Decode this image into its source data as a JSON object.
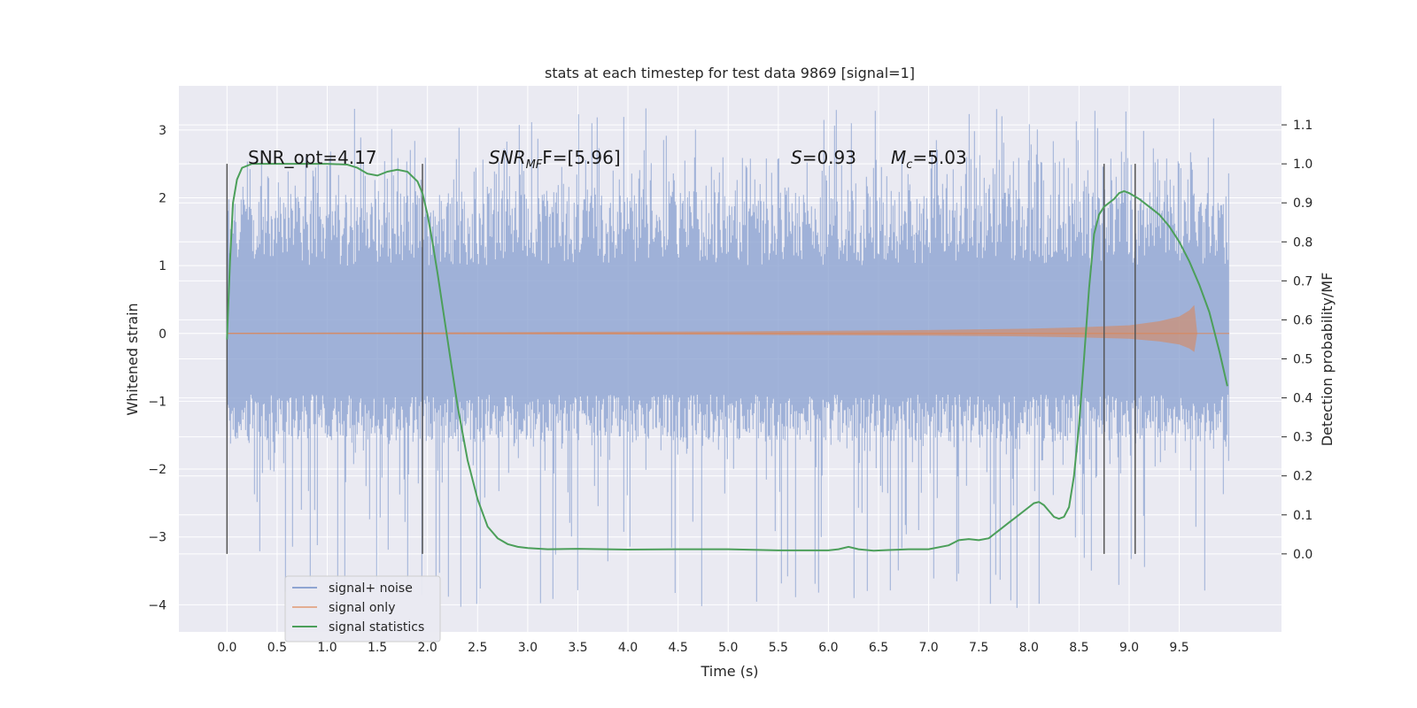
{
  "chart_data": {
    "type": "line",
    "title": "stats at each timestep for test data 9869 [signal=1]",
    "xlabel": "Time (s)",
    "ylabel": "Whitened strain",
    "y2label": "Detection probability/MF",
    "xlim": [
      -0.48,
      10.52
    ],
    "ylim": [
      -4.4,
      3.65
    ],
    "y2lim": [
      -0.2,
      1.2
    ],
    "x_ticks": [
      "0.0",
      "0.5",
      "1.0",
      "1.5",
      "2.0",
      "2.5",
      "3.0",
      "3.5",
      "4.0",
      "4.5",
      "5.0",
      "5.5",
      "6.0",
      "6.5",
      "7.0",
      "7.5",
      "8.0",
      "8.5",
      "9.0",
      "9.5"
    ],
    "y_ticks": [
      "3",
      "2",
      "1",
      "0",
      "−1",
      "−2",
      "−3",
      "−4"
    ],
    "y2_ticks": [
      "1.1",
      "1.0",
      "0.9",
      "0.8",
      "0.7",
      "0.6",
      "0.5",
      "0.4",
      "0.3",
      "0.2",
      "0.1",
      "0.0"
    ],
    "grid": true,
    "legend_position": "bottom-left",
    "annotations": {
      "snr_opt": "SNR_opt=4.17",
      "snr_mf_base": "SNR",
      "snr_mf_sub": "MF",
      "snr_mf_rest": "F=[5.96]",
      "s_label": "S",
      "s_value": "=0.93",
      "mc_base": "M",
      "mc_sub": "c",
      "mc_value": "=5.03"
    },
    "vlines": {
      "x": [
        0.0,
        1.95,
        8.75,
        9.06
      ],
      "y2_range": [
        0.0,
        1.0
      ]
    },
    "series": [
      {
        "name": "signal+ noise",
        "color": "#8fa5d2",
        "axis": "left",
        "x_range": [
          0.0,
          10.0
        ],
        "envelope": {
          "typical": [
            -1.6,
            2.1
          ],
          "extreme": [
            -4.05,
            3.32
          ]
        }
      },
      {
        "name": "signal only",
        "color": "#dd8452",
        "axis": "left",
        "x": [
          0.0,
          1.0,
          2.0,
          3.0,
          4.0,
          5.0,
          6.0,
          7.0,
          8.0,
          8.5,
          9.0,
          9.3,
          9.5,
          9.6,
          9.65,
          9.68,
          10.0
        ],
        "amplitude": [
          0.01,
          0.012,
          0.015,
          0.02,
          0.025,
          0.03,
          0.04,
          0.05,
          0.07,
          0.09,
          0.12,
          0.18,
          0.25,
          0.34,
          0.42,
          0.0,
          0.0
        ]
      },
      {
        "name": "signal statistics",
        "color": "#4c9f5a",
        "axis": "right",
        "x": [
          0.0,
          0.03,
          0.06,
          0.1,
          0.15,
          0.25,
          0.4,
          0.6,
          0.8,
          1.0,
          1.2,
          1.3,
          1.4,
          1.5,
          1.6,
          1.7,
          1.8,
          1.9,
          1.95,
          2.0,
          2.05,
          2.1,
          2.2,
          2.3,
          2.4,
          2.5,
          2.6,
          2.7,
          2.8,
          2.9,
          3.0,
          3.2,
          3.5,
          4.0,
          4.5,
          5.0,
          5.5,
          6.0,
          6.1,
          6.2,
          6.3,
          6.45,
          6.6,
          6.8,
          7.0,
          7.2,
          7.3,
          7.4,
          7.5,
          7.6,
          7.7,
          7.8,
          7.9,
          8.0,
          8.05,
          8.1,
          8.15,
          8.2,
          8.25,
          8.3,
          8.35,
          8.4,
          8.45,
          8.5,
          8.55,
          8.6,
          8.65,
          8.7,
          8.75,
          8.8,
          8.85,
          8.9,
          8.95,
          9.0,
          9.1,
          9.2,
          9.3,
          9.4,
          9.5,
          9.6,
          9.7,
          9.8,
          9.9,
          9.98
        ],
        "y": [
          0.55,
          0.75,
          0.9,
          0.96,
          0.99,
          1.0,
          1.0,
          1.0,
          1.0,
          1.0,
          0.998,
          0.99,
          0.975,
          0.97,
          0.98,
          0.985,
          0.98,
          0.955,
          0.925,
          0.87,
          0.8,
          0.72,
          0.55,
          0.38,
          0.24,
          0.14,
          0.07,
          0.04,
          0.025,
          0.018,
          0.015,
          0.012,
          0.013,
          0.011,
          0.012,
          0.012,
          0.009,
          0.009,
          0.012,
          0.018,
          0.012,
          0.008,
          0.01,
          0.012,
          0.012,
          0.022,
          0.035,
          0.038,
          0.035,
          0.04,
          0.06,
          0.08,
          0.1,
          0.12,
          0.13,
          0.133,
          0.125,
          0.11,
          0.095,
          0.09,
          0.095,
          0.12,
          0.2,
          0.33,
          0.5,
          0.68,
          0.82,
          0.87,
          0.89,
          0.9,
          0.91,
          0.925,
          0.93,
          0.925,
          0.91,
          0.89,
          0.87,
          0.84,
          0.8,
          0.75,
          0.69,
          0.62,
          0.52,
          0.43
        ]
      }
    ]
  }
}
